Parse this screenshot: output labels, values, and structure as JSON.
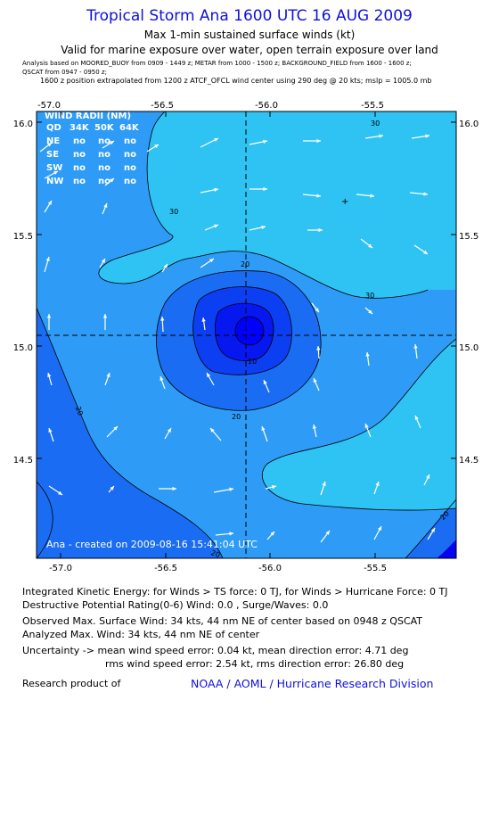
{
  "header": {
    "title": "Tropical Storm Ana 1600 UTC 16 AUG 2009",
    "subtitle1": "Max 1-min sustained surface winds (kt)",
    "subtitle2": "Valid for marine exposure over water, open terrain exposure over land",
    "analysis_line1": "Analysis based on  MOORED_BUOY from 0909 - 1449 z;  METAR from 1000 - 1500 z;  BACKGROUND_FIELD from 1600 - 1600 z;",
    "analysis_line2": "QSCAT from 0947 - 0950 z;",
    "position_line": "1600 z position extrapolated from 1200 z ATCF_OFCL wind center using 290 deg @ 20 kts; mslp = 1005.0 mb"
  },
  "wind_radii": {
    "title": "WIND RADII (NM)",
    "header_cols": [
      "QD",
      "34K",
      "50K",
      "64K"
    ],
    "rows": [
      {
        "qd": "NE",
        "v34": "no",
        "v50": "no",
        "v64": "no"
      },
      {
        "qd": "SE",
        "v34": "no",
        "v50": "no",
        "v64": "no"
      },
      {
        "qd": "SW",
        "v34": "no",
        "v50": "no",
        "v64": "no"
      },
      {
        "qd": "NW",
        "v34": "no",
        "v50": "no",
        "v64": "no"
      }
    ]
  },
  "credit": "Ana - created on 2009-08-16 15:41:04 UTC",
  "chart_data": {
    "type": "contour",
    "x_ticks": [
      "-57.0",
      "-56.5",
      "-56.0",
      "-55.5"
    ],
    "y_ticks": [
      "16.0",
      "15.5",
      "15.0",
      "14.5"
    ],
    "xlim": [
      -57.1,
      -55.1
    ],
    "ylim": [
      14.05,
      16.05
    ],
    "center": {
      "lon": -56.1,
      "lat": 15.05
    },
    "contour_labels": [
      "30",
      "30",
      "30",
      "20",
      "20",
      "20",
      "20",
      "20",
      "10"
    ],
    "levels_kt": [
      10,
      20,
      30
    ],
    "colors": {
      "level_0_10": "#0505f0",
      "level_10_20": "#1a6cf2",
      "level_20_30": "#2e9cf6",
      "level_30_plus": "#2ec3f2",
      "outer_low": "#1560f0",
      "lowest": "#0000ff"
    }
  },
  "stats": {
    "ike": "Integrated Kinetic Energy:  for Winds > TS force: 0 TJ,  for Winds > Hurricane Force: 0 TJ",
    "dpr": "Destructive Potential Rating(0-6)   Wind: 0.0 , Surge/Waves: 0.0",
    "obs_max": "Observed Max. Surface Wind: 34 kts, 44 nm NE of center based on 0948 z QSCAT",
    "ana_max": "Analyzed Max. Wind: 34 kts, 44 nm NE of center",
    "unc1": "Uncertainty -> mean wind speed error: 0.04 kt,   mean direction error: 4.71 deg",
    "unc2": "rms wind speed error: 2.54 kt,   rms direction error: 26.80 deg",
    "research": "Research product of",
    "org": "NOAA / AOML / Hurricane Research Division"
  }
}
